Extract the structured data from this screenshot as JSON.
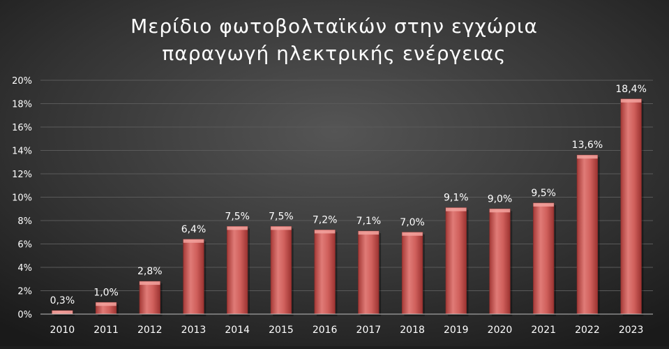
{
  "chart_data": {
    "type": "bar",
    "title_line1": "Μερίδιο φωτοβολταϊκών στην εγχώρια",
    "title_line2": "παραγωγή ηλεκτρικής ενέργειας",
    "xlabel": "",
    "ylabel": "",
    "ylim": [
      0,
      20
    ],
    "yticks": [
      "0%",
      "2%",
      "4%",
      "6%",
      "8%",
      "10%",
      "12%",
      "14%",
      "16%",
      "18%",
      "20%"
    ],
    "categories": [
      "2010",
      "2011",
      "2012",
      "2013",
      "2014",
      "2015",
      "2016",
      "2017",
      "2018",
      "2019",
      "2020",
      "2021",
      "2022",
      "2023"
    ],
    "values": [
      0.3,
      1.0,
      2.8,
      6.4,
      7.5,
      7.5,
      7.2,
      7.1,
      7.0,
      9.1,
      9.0,
      9.5,
      13.6,
      18.4
    ],
    "labels": [
      "0,3%",
      "1,0%",
      "2,8%",
      "6,4%",
      "7,5%",
      "7,5%",
      "7,2%",
      "7,1%",
      "7,0%",
      "9,1%",
      "9,0%",
      "9,5%",
      "13,6%",
      "18,4%"
    ],
    "grid": true,
    "legend": "none",
    "colors": {
      "bar": "#c0504d",
      "bar_light": "#e8807c",
      "background": "#2b2b2b",
      "text": "#ffffff",
      "grid": "#5a5a5a"
    }
  }
}
